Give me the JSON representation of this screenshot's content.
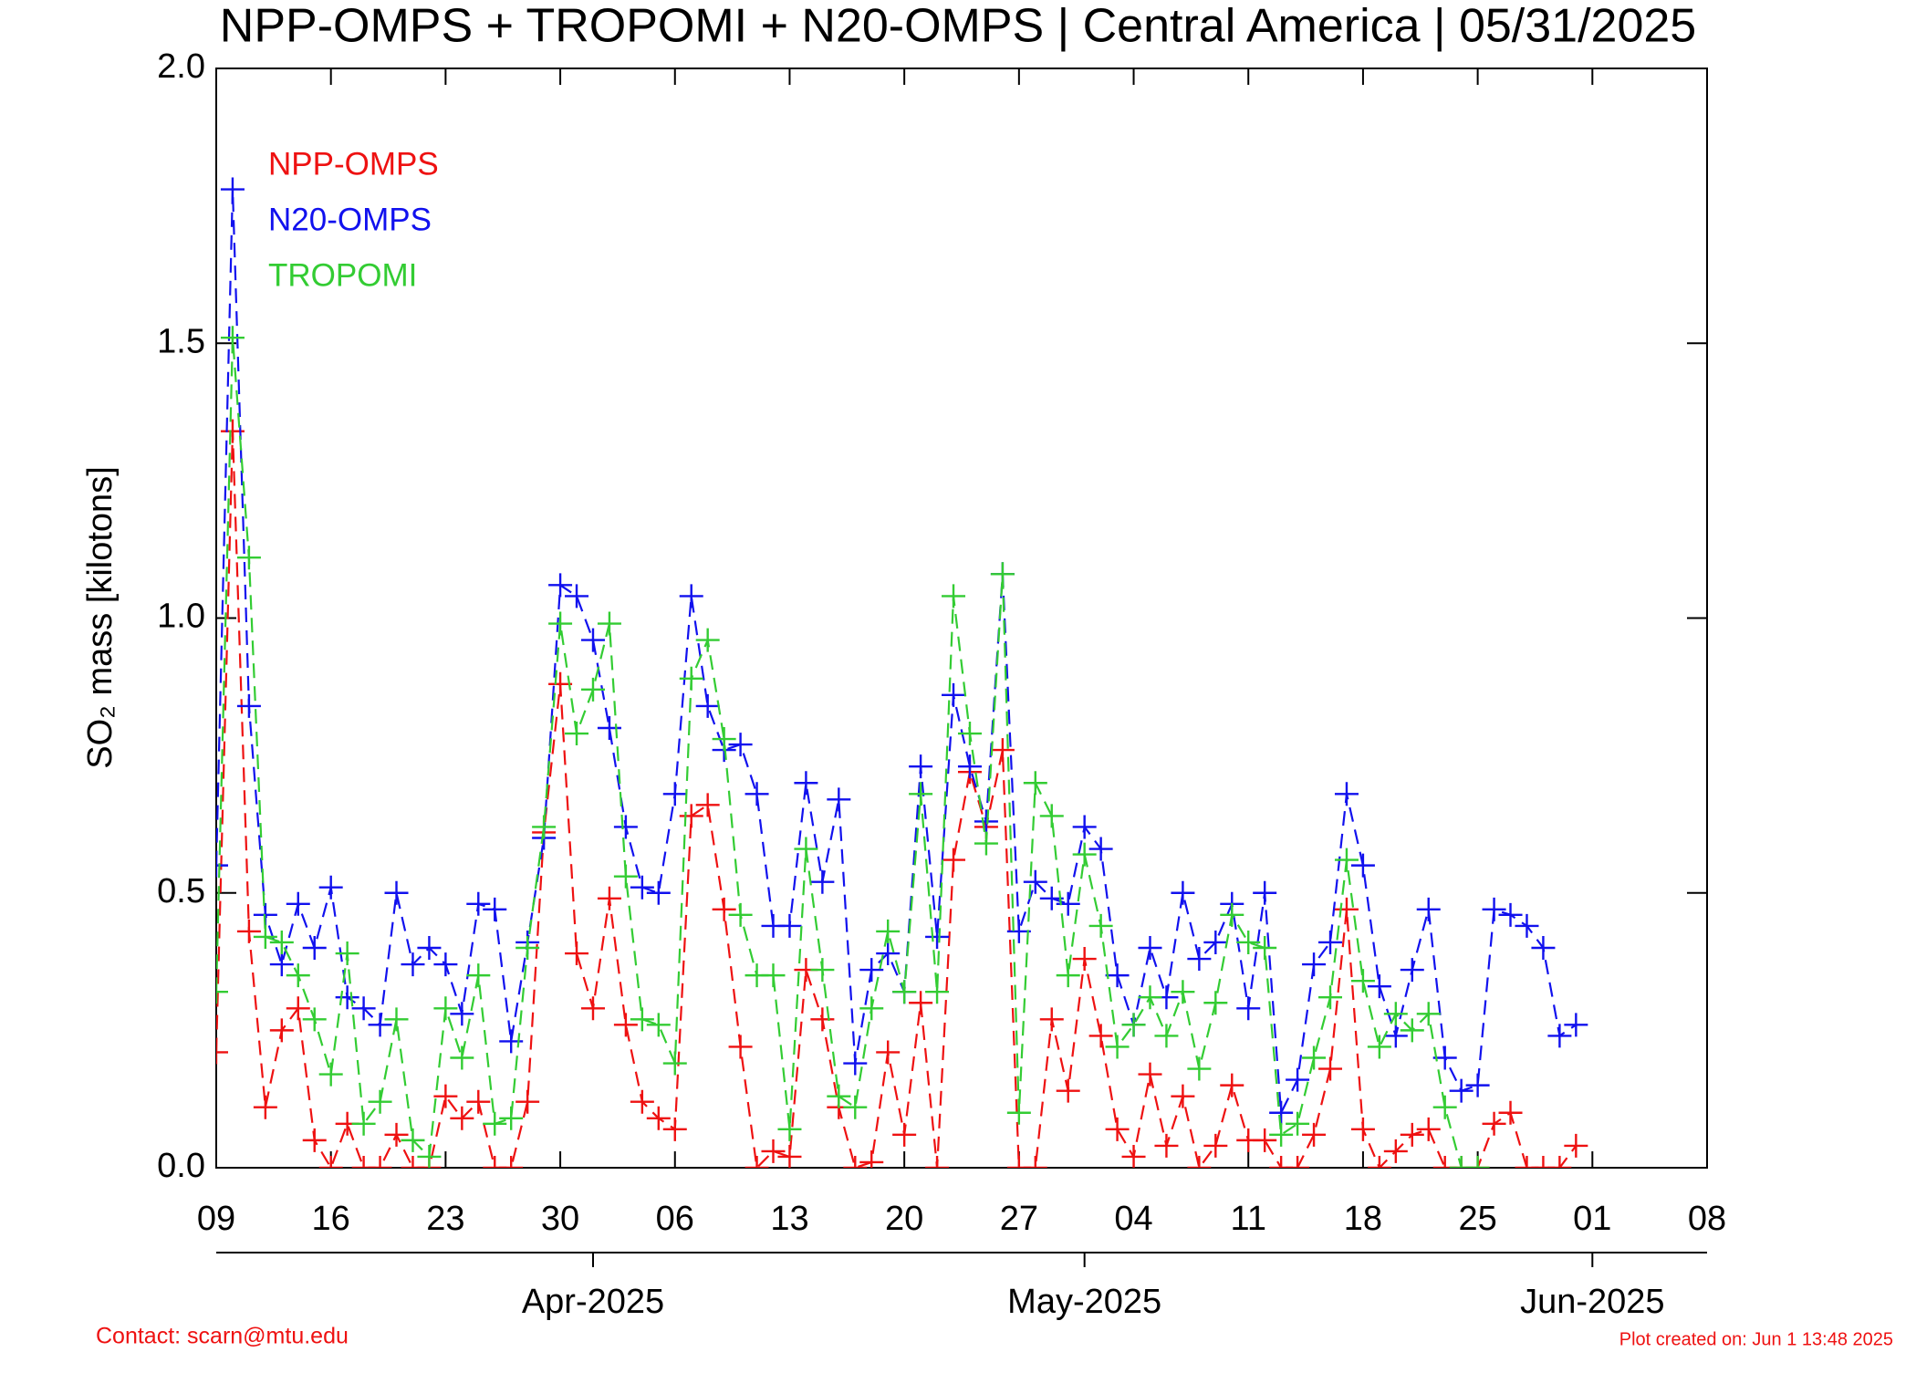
{
  "chart_data": {
    "type": "line",
    "title": "NPP-OMPS + TROPOMI + N20-OMPS | Central America | 05/31/2025",
    "y_label": "SO₂ mass [kilotons]",
    "contact": "Contact: scarn@mtu.edu",
    "created": "Plot created on: Jun  1 13:48 2025",
    "x": [
      "2025-03-09",
      "2025-03-10",
      "2025-03-11",
      "2025-03-12",
      "2025-03-13",
      "2025-03-14",
      "2025-03-15",
      "2025-03-16",
      "2025-03-17",
      "2025-03-18",
      "2025-03-19",
      "2025-03-20",
      "2025-03-21",
      "2025-03-22",
      "2025-03-23",
      "2025-03-24",
      "2025-03-25",
      "2025-03-26",
      "2025-03-27",
      "2025-03-28",
      "2025-03-29",
      "2025-03-30",
      "2025-03-31",
      "2025-04-01",
      "2025-04-02",
      "2025-04-03",
      "2025-04-04",
      "2025-04-05",
      "2025-04-06",
      "2025-04-07",
      "2025-04-08",
      "2025-04-09",
      "2025-04-10",
      "2025-04-11",
      "2025-04-12",
      "2025-04-13",
      "2025-04-14",
      "2025-04-15",
      "2025-04-16",
      "2025-04-17",
      "2025-04-18",
      "2025-04-19",
      "2025-04-20",
      "2025-04-21",
      "2025-04-22",
      "2025-04-23",
      "2025-04-24",
      "2025-04-25",
      "2025-04-26",
      "2025-04-27",
      "2025-04-28",
      "2025-04-29",
      "2025-04-30",
      "2025-05-01",
      "2025-05-02",
      "2025-05-03",
      "2025-05-04",
      "2025-05-05",
      "2025-05-06",
      "2025-05-07",
      "2025-05-08",
      "2025-05-09",
      "2025-05-10",
      "2025-05-11",
      "2025-05-12",
      "2025-05-13",
      "2025-05-14",
      "2025-05-15",
      "2025-05-16",
      "2025-05-17",
      "2025-05-18",
      "2025-05-19",
      "2025-05-20",
      "2025-05-21",
      "2025-05-22",
      "2025-05-23",
      "2025-05-24",
      "2025-05-25",
      "2025-05-26",
      "2025-05-27",
      "2025-05-28",
      "2025-05-29",
      "2025-05-30",
      "2025-05-31",
      "2025-06-01"
    ],
    "series": [
      {
        "name": "NPP-OMPS",
        "color": "#ee1111",
        "values": [
          0.21,
          1.34,
          0.43,
          0.11,
          0.25,
          0.29,
          0.05,
          0,
          0.08,
          0,
          0,
          0.06,
          0,
          0,
          0.13,
          0.09,
          0.12,
          0,
          0,
          0.12,
          0.61,
          0.88,
          0.39,
          0.29,
          0.49,
          0.26,
          0.12,
          0.09,
          0.07,
          0.64,
          0.66,
          0.47,
          0.22,
          0,
          0.03,
          0.02,
          0.36,
          0.27,
          0.11,
          0,
          0.01,
          0.21,
          0.06,
          0.3,
          0,
          0.56,
          0.72,
          0.62,
          0.76,
          0,
          0,
          0.27,
          0.14,
          0.38,
          0.24,
          0.07,
          0.02,
          0.17,
          0.04,
          0.13,
          0,
          0.04,
          0.15,
          0.05,
          0.05,
          0,
          0,
          0.06,
          0.18,
          0.47,
          0.07,
          0,
          0.03,
          0.06,
          0.07,
          0,
          0,
          0,
          0.08,
          0.1,
          0,
          0,
          0,
          0.04,
          null
        ]
      },
      {
        "name": "N20-OMPS",
        "color": "#1111ee",
        "values": [
          0.55,
          1.78,
          0.84,
          0.46,
          0.37,
          0.48,
          0.4,
          0.51,
          0.31,
          0.29,
          0.26,
          0.5,
          0.37,
          0.4,
          0.37,
          0.28,
          0.48,
          0.47,
          0.23,
          0.41,
          0.6,
          1.06,
          1.04,
          0.96,
          0.8,
          0.62,
          0.51,
          0.5,
          0.68,
          1.04,
          0.84,
          0.76,
          0.77,
          0.68,
          0.44,
          0.44,
          0.7,
          0.52,
          0.67,
          0.19,
          0.36,
          0.39,
          0.32,
          0.73,
          0.42,
          0.86,
          0.73,
          0.63,
          1.08,
          0.43,
          0.52,
          0.49,
          0.48,
          0.62,
          0.58,
          0.35,
          0.26,
          0.4,
          0.31,
          0.5,
          0.38,
          0.41,
          0.48,
          0.29,
          0.5,
          0.1,
          0.16,
          0.37,
          0.41,
          0.68,
          0.55,
          0.33,
          0.24,
          0.36,
          0.47,
          0.2,
          0.14,
          0.15,
          0.47,
          0.46,
          0.44,
          0.4,
          0.24,
          0.26,
          null
        ]
      },
      {
        "name": "TROPOMI",
        "color": "#33cc33",
        "values": [
          0.32,
          1.51,
          1.11,
          0.42,
          0.41,
          0.35,
          0.27,
          0.17,
          0.39,
          0.08,
          0.12,
          0.27,
          0.05,
          0.02,
          0.29,
          0.2,
          0.35,
          0.08,
          0.09,
          0.4,
          0.62,
          0.99,
          0.79,
          0.87,
          0.99,
          0.53,
          0.27,
          0.26,
          0.19,
          0.89,
          0.96,
          0.78,
          0.46,
          0.35,
          0.35,
          0.07,
          0.58,
          0.36,
          0.13,
          0.11,
          0.29,
          0.43,
          0.32,
          0.68,
          0.32,
          1.04,
          0.79,
          0.59,
          1.08,
          0.1,
          0.7,
          0.64,
          0.35,
          0.57,
          0.44,
          0.22,
          0.26,
          0.31,
          0.24,
          0.32,
          0.18,
          0.3,
          0.46,
          0.41,
          0.4,
          0.06,
          0.08,
          0.2,
          0.31,
          0.56,
          0.34,
          0.22,
          0.28,
          0.25,
          0.28,
          0.11,
          0,
          0,
          null,
          null,
          null,
          null,
          null,
          null,
          null
        ]
      }
    ],
    "xlim": [
      "2025-03-09",
      "2025-06-08"
    ],
    "xticks": [
      {
        "value": "2025-03-09",
        "label": "09"
      },
      {
        "value": "2025-03-16",
        "label": "16"
      },
      {
        "value": "2025-03-23",
        "label": "23"
      },
      {
        "value": "2025-03-30",
        "label": "30"
      },
      {
        "value": "2025-04-06",
        "label": "06"
      },
      {
        "value": "2025-04-13",
        "label": "13"
      },
      {
        "value": "2025-04-20",
        "label": "20"
      },
      {
        "value": "2025-04-27",
        "label": "27"
      },
      {
        "value": "2025-05-04",
        "label": "04"
      },
      {
        "value": "2025-05-11",
        "label": "11"
      },
      {
        "value": "2025-05-18",
        "label": "18"
      },
      {
        "value": "2025-05-25",
        "label": "25"
      },
      {
        "value": "2025-06-01",
        "label": "01"
      },
      {
        "value": "2025-06-08",
        "label": "08"
      }
    ],
    "month_ticks": [
      {
        "value": "2025-04-01",
        "label": "Apr-2025"
      },
      {
        "value": "2025-05-01",
        "label": "May-2025"
      },
      {
        "value": "2025-06-01",
        "label": "Jun-2025"
      }
    ],
    "ylim": [
      0,
      2
    ],
    "yticks": [
      {
        "value": 0,
        "label": "0.0"
      },
      {
        "value": 0.5,
        "label": "0.5"
      },
      {
        "value": 1,
        "label": "1.0"
      },
      {
        "value": 1.5,
        "label": "1.5"
      },
      {
        "value": 2,
        "label": "2.0"
      }
    ],
    "legend": "upper left"
  }
}
